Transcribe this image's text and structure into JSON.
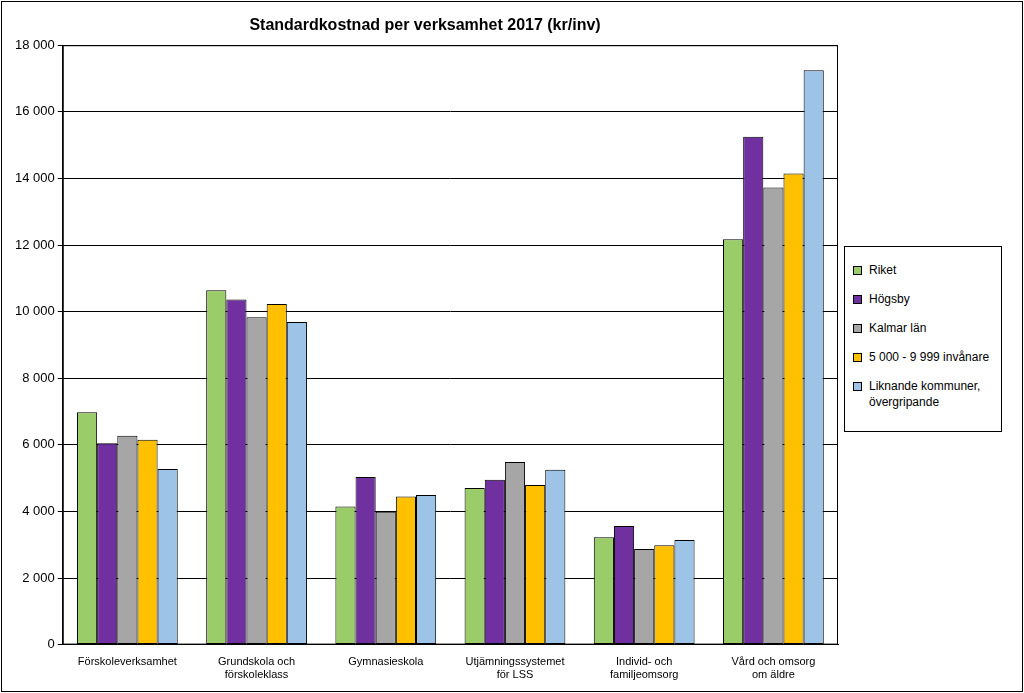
{
  "chart_data": {
    "type": "bar",
    "title": "Standardkostnad per verksamhet 2017 (kr/inv)",
    "categories": [
      [
        "Förskoleverksamhet"
      ],
      [
        "Grundskola och",
        "förskoleklass"
      ],
      [
        "Gymnasieskola"
      ],
      [
        "Utjämningssystemet",
        "för LSS"
      ],
      [
        "Individ- och",
        "familjeomsorg"
      ],
      [
        "Vård och omsorg",
        "om äldre"
      ]
    ],
    "series": [
      {
        "name": "Riket",
        "color": "#9bcc6a",
        "values": [
          6980,
          10640,
          4150,
          4700,
          3220,
          12170
        ]
      },
      {
        "name": "Högsby",
        "color": "#7030a0",
        "values": [
          6050,
          10360,
          5030,
          4950,
          3560,
          15250
        ]
      },
      {
        "name": "Kalmar län",
        "color": "#a6a6a6",
        "values": [
          6270,
          9830,
          3990,
          5480,
          2870,
          13730
        ]
      },
      {
        "name": "5 000 - 9 999 invånare",
        "color": "#ffc000",
        "values": [
          6150,
          10230,
          4450,
          4790,
          2980,
          14150
        ]
      },
      {
        "name": "Liknande kommuner, övergripande",
        "color": "#9dc3e6",
        "values": [
          5270,
          9690,
          4490,
          5250,
          3140,
          17250
        ]
      }
    ],
    "ylim": [
      0,
      18000
    ],
    "yticks": [
      0,
      {
        "value": 2000,
        "label": "2 000"
      },
      {
        "value": 4000,
        "label": "4 000"
      },
      {
        "value": 6000,
        "label": "6 000"
      },
      {
        "value": 8000,
        "label": "8 000"
      },
      {
        "value": 10000,
        "label": "10 000"
      },
      {
        "value": 12000,
        "label": "12 000"
      },
      {
        "value": 14000,
        "label": "14 000"
      },
      {
        "value": 16000,
        "label": "16 000"
      },
      {
        "value": 18000,
        "label": "18 000"
      }
    ],
    "grid": true,
    "legend": "right"
  }
}
